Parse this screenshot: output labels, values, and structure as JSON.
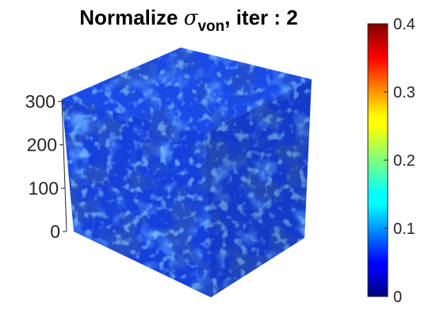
{
  "chart_data": {
    "type": "heatmap",
    "title": {
      "prefix": "Normalize ",
      "symbol": "σ",
      "subscript": "von",
      "suffix": ", iter : 2"
    },
    "zaxis": {
      "ticks": [
        0,
        100,
        200,
        300
      ],
      "tick_labels": [
        "0",
        "100",
        "200",
        "300"
      ],
      "range": [
        0,
        300
      ]
    },
    "colorbar": {
      "colormap": "jet",
      "range": [
        0,
        0.4
      ],
      "ticks": [
        0,
        0.1,
        0.2,
        0.3,
        0.4
      ],
      "tick_labels": [
        "0",
        "0.1",
        "0.2",
        "0.3",
        "0.4"
      ],
      "location": "right"
    },
    "field": {
      "description_values": "normalized von Mises stress on cube faces",
      "approx_min": 0.0,
      "approx_max": 0.14,
      "typical": 0.05
    },
    "colors": {
      "cube_base": "#1846e8",
      "cube_dark": "#0a1f9e",
      "cube_light": "#3d86ff"
    }
  }
}
